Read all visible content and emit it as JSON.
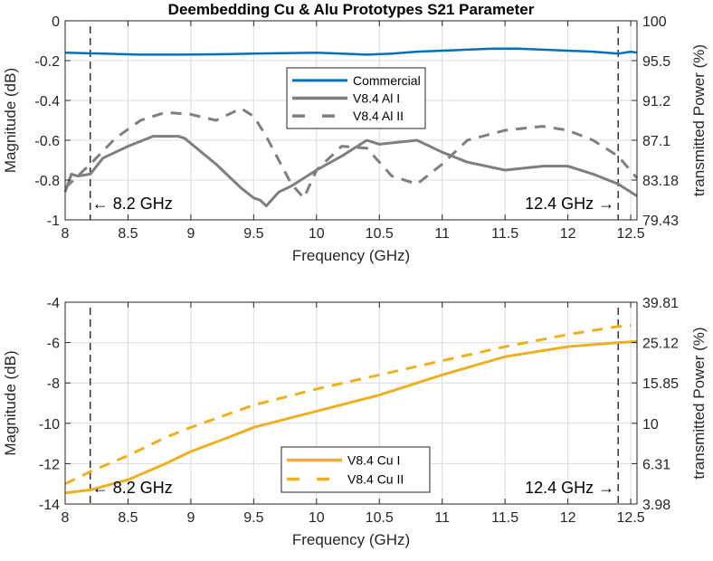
{
  "chart_data": [
    {
      "type": "line",
      "title": "Deembedding Cu & Alu Prototypes S21 Parameter",
      "xlabel": "Frequency (GHz)",
      "ylabel": "Magnitude (dB)",
      "y2label": "transmitted Power (%)",
      "xlim": [
        8,
        12.55
      ],
      "ylim": [
        -1,
        0
      ],
      "xticks": [
        8,
        8.5,
        9,
        9.5,
        10,
        10.5,
        11,
        11.5,
        12,
        12.5
      ],
      "xtick_labels": [
        "8",
        "8.5",
        "9",
        "9.5",
        "10",
        "10.5",
        "11",
        "11.5",
        "12",
        "12.5"
      ],
      "yticks": [
        0,
        -0.2,
        -0.4,
        -0.6,
        -0.8,
        -1
      ],
      "ytick_labels": [
        "0",
        "-0.2",
        "-0.4",
        "-0.6",
        "-0.8",
        "-1"
      ],
      "y2tick_labels": [
        "100",
        "95.5",
        "91.2",
        "87.1",
        "83.18",
        "79.43"
      ],
      "grid": true,
      "legend_position": "upper-center",
      "annotations": [
        {
          "text": "← 8.2 GHz",
          "x": 8.2,
          "side": "right"
        },
        {
          "text": "12.4 GHz →",
          "x": 12.4,
          "side": "left"
        }
      ],
      "vlines": [
        8.2,
        12.4
      ],
      "series": [
        {
          "name": "Commercial",
          "color": "#0072BD",
          "style": "solid",
          "x": [
            8.0,
            8.3,
            8.6,
            8.9,
            9.2,
            9.5,
            9.8,
            10.0,
            10.2,
            10.4,
            10.6,
            10.8,
            11.0,
            11.2,
            11.4,
            11.6,
            11.8,
            12.0,
            12.2,
            12.4,
            12.5,
            12.55
          ],
          "y": [
            -0.16,
            -0.165,
            -0.17,
            -0.17,
            -0.168,
            -0.165,
            -0.162,
            -0.16,
            -0.165,
            -0.17,
            -0.165,
            -0.155,
            -0.15,
            -0.145,
            -0.14,
            -0.14,
            -0.145,
            -0.15,
            -0.155,
            -0.165,
            -0.155,
            -0.16
          ]
        },
        {
          "name": "V8.4 Al I",
          "color": "#7F7F7F",
          "style": "solid",
          "x": [
            8.0,
            8.05,
            8.1,
            8.2,
            8.3,
            8.5,
            8.7,
            8.9,
            8.95,
            9.2,
            9.4,
            9.5,
            9.55,
            9.6,
            9.7,
            9.8,
            10.0,
            10.2,
            10.4,
            10.5,
            10.8,
            11.0,
            11.2,
            11.5,
            11.8,
            12.0,
            12.2,
            12.4,
            12.55
          ],
          "y": [
            -0.86,
            -0.77,
            -0.78,
            -0.77,
            -0.69,
            -0.63,
            -0.58,
            -0.58,
            -0.59,
            -0.72,
            -0.84,
            -0.89,
            -0.9,
            -0.93,
            -0.86,
            -0.83,
            -0.75,
            -0.68,
            -0.6,
            -0.62,
            -0.6,
            -0.66,
            -0.71,
            -0.75,
            -0.73,
            -0.73,
            -0.77,
            -0.82,
            -0.88
          ]
        },
        {
          "name": "V8.4 Al II",
          "color": "#7F7F7F",
          "style": "dashed",
          "x": [
            8.0,
            8.2,
            8.4,
            8.6,
            8.8,
            9.0,
            9.2,
            9.4,
            9.5,
            9.6,
            9.7,
            9.8,
            9.9,
            10.0,
            10.2,
            10.4,
            10.6,
            10.8,
            11.0,
            11.2,
            11.5,
            11.8,
            12.0,
            12.2,
            12.4,
            12.55
          ],
          "y": [
            -0.84,
            -0.72,
            -0.59,
            -0.5,
            -0.46,
            -0.47,
            -0.5,
            -0.44,
            -0.48,
            -0.58,
            -0.7,
            -0.82,
            -0.89,
            -0.75,
            -0.63,
            -0.64,
            -0.78,
            -0.82,
            -0.72,
            -0.6,
            -0.55,
            -0.53,
            -0.55,
            -0.6,
            -0.68,
            -0.79
          ]
        }
      ]
    },
    {
      "type": "line",
      "title": "",
      "xlabel": "Frequency (GHz)",
      "ylabel": "Magnitude (dB)",
      "y2label": "transmitted Power (%)",
      "xlim": [
        8,
        12.55
      ],
      "ylim": [
        -14,
        -4
      ],
      "xticks": [
        8,
        8.5,
        9,
        9.5,
        10,
        10.5,
        11,
        11.5,
        12,
        12.5
      ],
      "xtick_labels": [
        "8",
        "8.5",
        "9",
        "9.5",
        "10",
        "10.5",
        "11",
        "11.5",
        "12",
        "12.5"
      ],
      "yticks": [
        -4,
        -6,
        -8,
        -10,
        -12,
        -14
      ],
      "ytick_labels": [
        "-4",
        "-6",
        "-8",
        "-10",
        "-12",
        "-14"
      ],
      "y2tick_labels": [
        "39.81",
        "25.12",
        "15.85",
        "10",
        "6.31",
        "3.98"
      ],
      "grid": true,
      "legend_position": "lower-center",
      "annotations": [
        {
          "text": "← 8.2 GHz",
          "x": 8.2,
          "side": "right"
        },
        {
          "text": "12.4 GHz →",
          "x": 12.4,
          "side": "left"
        }
      ],
      "vlines": [
        8.2,
        12.4
      ],
      "series": [
        {
          "name": "V8.4 Cu I",
          "color": "#EDB120",
          "style": "solid",
          "x": [
            8.0,
            8.2,
            8.5,
            8.8,
            9.0,
            9.3,
            9.5,
            10.0,
            10.5,
            11.0,
            11.5,
            12.0,
            12.4,
            12.55
          ],
          "y": [
            -13.45,
            -13.3,
            -12.8,
            -12.0,
            -11.4,
            -10.7,
            -10.2,
            -9.4,
            -8.6,
            -7.6,
            -6.7,
            -6.2,
            -6.0,
            -5.95
          ]
        },
        {
          "name": "V8.4 Cu II",
          "color": "#EDB120",
          "style": "dashed",
          "x": [
            8.0,
            8.2,
            8.5,
            8.8,
            9.0,
            9.5,
            10.0,
            10.5,
            11.0,
            11.5,
            12.0,
            12.4,
            12.5
          ],
          "y": [
            -13.0,
            -12.4,
            -11.6,
            -10.7,
            -10.2,
            -9.1,
            -8.3,
            -7.6,
            -6.9,
            -6.2,
            -5.6,
            -5.2,
            -5.15
          ]
        }
      ]
    }
  ]
}
